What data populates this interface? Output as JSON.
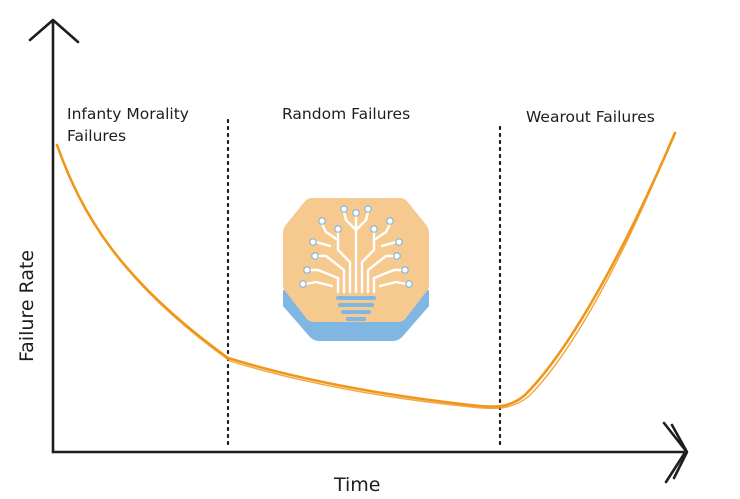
{
  "diagram": {
    "x_axis_label": "Time",
    "y_axis_label": "Failure Rate",
    "regions": [
      {
        "line1": "Infanty Morality",
        "line2": "Failures"
      },
      {
        "line1": "Random Failures",
        "line2": ""
      },
      {
        "line1": "Wearout Failures",
        "line2": ""
      }
    ],
    "curve_color": "#f0961a",
    "logo": {
      "icon": "circuit-tree-lightbulb-icon",
      "bg_color": "#f6c98f",
      "base_color": "#7fb6e2"
    }
  }
}
